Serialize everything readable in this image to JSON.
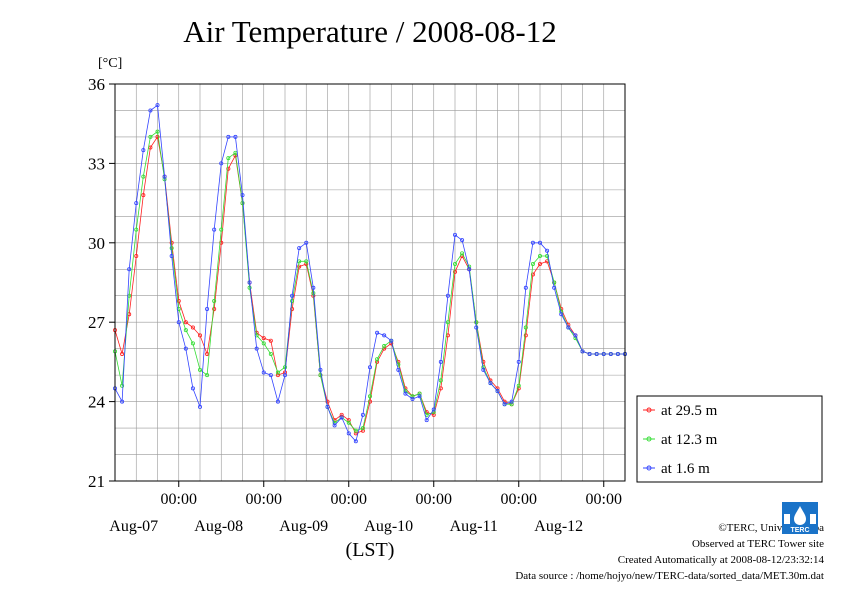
{
  "page": {
    "title": "Air Temperature / 2008-08-12",
    "unit_label": "[°C]",
    "xlabel": "(LST)"
  },
  "footer": {
    "copyright": "©TERC, Univ. Tsukuba",
    "observed": "Observed at TERC Tower site",
    "created": "Created Automatically at 2008-08-12/23:32:14",
    "source": "Data source : /home/hojyo/new/TERC-data/sorted_data/MET.30m.dat"
  },
  "logo": {
    "icon": "terc-logo-icon",
    "text": "TERC"
  },
  "chart_data": {
    "type": "line",
    "title": "Air Temperature / 2008-08-12",
    "ylabel": "[°C]",
    "xlabel": "(LST)",
    "ylim": [
      21,
      36
    ],
    "yticks": [
      21,
      24,
      27,
      30,
      33,
      36
    ],
    "xlim_hours": [
      -18,
      126
    ],
    "x_ticks": [
      {
        "hour": 0,
        "time": "00:00",
        "date": "Aug-07"
      },
      {
        "hour": 24,
        "time": "00:00",
        "date": "Aug-08"
      },
      {
        "hour": 48,
        "time": "00:00",
        "date": "Aug-09"
      },
      {
        "hour": 72,
        "time": "00:00",
        "date": "Aug-10"
      },
      {
        "hour": 96,
        "time": "00:00",
        "date": "Aug-11"
      },
      {
        "hour": 120,
        "time": "00:00",
        "date": "Aug-12"
      }
    ],
    "x_unit": "hours from 2008-08-07 00:00 LST",
    "grid": true,
    "legend_position": "right",
    "series": [
      {
        "name": "at 29.5 m",
        "color": "#ff2020",
        "x": [
          -18,
          -16,
          -14,
          -12,
          -10,
          -8,
          -6,
          -4,
          -2,
          0,
          2,
          4,
          6,
          8,
          10,
          12,
          14,
          16,
          18,
          20,
          22,
          24,
          26,
          28,
          30,
          32,
          34,
          36,
          38,
          40,
          42,
          44,
          46,
          48,
          50,
          52,
          54,
          56,
          58,
          60,
          62,
          64,
          66,
          68,
          70,
          72,
          74,
          76,
          78,
          80,
          82,
          84,
          86,
          88,
          90,
          92,
          94,
          96,
          98,
          100,
          102,
          104,
          106,
          108,
          110,
          112,
          114,
          116,
          118,
          120,
          122,
          124,
          126
        ],
        "values": [
          26.7,
          25.8,
          27.3,
          29.5,
          31.8,
          33.6,
          34.0,
          32.5,
          30.0,
          27.8,
          27.0,
          26.8,
          26.5,
          25.8,
          27.5,
          30.0,
          32.8,
          33.3,
          31.5,
          28.5,
          26.6,
          26.4,
          26.3,
          25.0,
          25.1,
          27.5,
          29.1,
          29.2,
          28.0,
          25.0,
          24.0,
          23.3,
          23.5,
          23.3,
          22.8,
          22.9,
          24.0,
          25.5,
          26.0,
          26.2,
          25.5,
          24.5,
          24.2,
          24.3,
          23.6,
          23.5,
          24.5,
          26.5,
          28.9,
          29.5,
          29.0,
          27.0,
          25.5,
          24.8,
          24.5,
          24.0,
          23.9,
          24.5,
          26.5,
          28.8,
          29.2,
          29.3,
          28.5,
          27.5,
          26.9,
          26.5,
          25.9,
          25.8,
          25.8,
          25.8,
          25.8,
          25.8,
          25.8
        ]
      },
      {
        "name": "at 12.3 m",
        "color": "#33dd33",
        "x": [
          -18,
          -16,
          -14,
          -12,
          -10,
          -8,
          -6,
          -4,
          -2,
          0,
          2,
          4,
          6,
          8,
          10,
          12,
          14,
          16,
          18,
          20,
          22,
          24,
          26,
          28,
          30,
          32,
          34,
          36,
          38,
          40,
          42,
          44,
          46,
          48,
          50,
          52,
          54,
          56,
          58,
          60,
          62,
          64,
          66,
          68,
          70,
          72,
          74,
          76,
          78,
          80,
          82,
          84,
          86,
          88,
          90,
          92,
          94,
          96,
          98,
          100,
          102,
          104,
          106,
          108,
          110,
          112,
          114,
          116,
          118,
          120,
          122,
          124,
          126
        ],
        "values": [
          25.9,
          24.6,
          28.0,
          30.5,
          32.5,
          34.0,
          34.2,
          32.4,
          29.8,
          27.5,
          26.7,
          26.2,
          25.2,
          25.0,
          27.8,
          30.5,
          33.2,
          33.4,
          31.5,
          28.3,
          26.5,
          26.2,
          25.8,
          25.1,
          25.3,
          27.8,
          29.3,
          29.3,
          28.1,
          25.0,
          23.8,
          23.2,
          23.4,
          23.2,
          22.9,
          23.0,
          24.2,
          25.6,
          26.1,
          26.3,
          25.4,
          24.4,
          24.2,
          24.3,
          23.5,
          23.6,
          24.8,
          27.0,
          29.2,
          29.6,
          29.1,
          27.0,
          25.3,
          24.7,
          24.4,
          23.9,
          23.9,
          24.6,
          26.8,
          29.2,
          29.5,
          29.5,
          28.5,
          27.4,
          26.8,
          26.4,
          25.9,
          25.8,
          25.8,
          25.8,
          25.8,
          25.8,
          25.8
        ]
      },
      {
        "name": "at 1.6 m",
        "color": "#3344ff",
        "x": [
          -18,
          -16,
          -14,
          -12,
          -10,
          -8,
          -6,
          -4,
          -2,
          0,
          2,
          4,
          6,
          8,
          10,
          12,
          14,
          16,
          18,
          20,
          22,
          24,
          26,
          28,
          30,
          32,
          34,
          36,
          38,
          40,
          42,
          44,
          46,
          48,
          50,
          52,
          54,
          56,
          58,
          60,
          62,
          64,
          66,
          68,
          70,
          72,
          74,
          76,
          78,
          80,
          82,
          84,
          86,
          88,
          90,
          92,
          94,
          96,
          98,
          100,
          102,
          104,
          106,
          108,
          110,
          112,
          114,
          116,
          118,
          120,
          122,
          124,
          126
        ],
        "values": [
          24.5,
          24.0,
          29.0,
          31.5,
          33.5,
          35.0,
          35.2,
          32.5,
          29.5,
          27.0,
          26.0,
          24.5,
          23.8,
          27.5,
          30.5,
          33.0,
          34.0,
          34.0,
          31.8,
          28.5,
          26.0,
          25.1,
          25.0,
          24.0,
          25.0,
          28.0,
          29.8,
          30.0,
          28.3,
          25.2,
          23.8,
          23.1,
          23.4,
          22.8,
          22.5,
          23.5,
          25.3,
          26.6,
          26.5,
          26.3,
          25.2,
          24.3,
          24.1,
          24.2,
          23.3,
          23.7,
          25.5,
          28.0,
          30.3,
          30.1,
          29.0,
          26.8,
          25.2,
          24.7,
          24.4,
          23.9,
          24.0,
          25.5,
          28.3,
          30.0,
          30.0,
          29.7,
          28.3,
          27.3,
          26.8,
          26.5,
          25.9,
          25.8,
          25.8,
          25.8,
          25.8,
          25.8,
          25.8
        ]
      }
    ]
  }
}
